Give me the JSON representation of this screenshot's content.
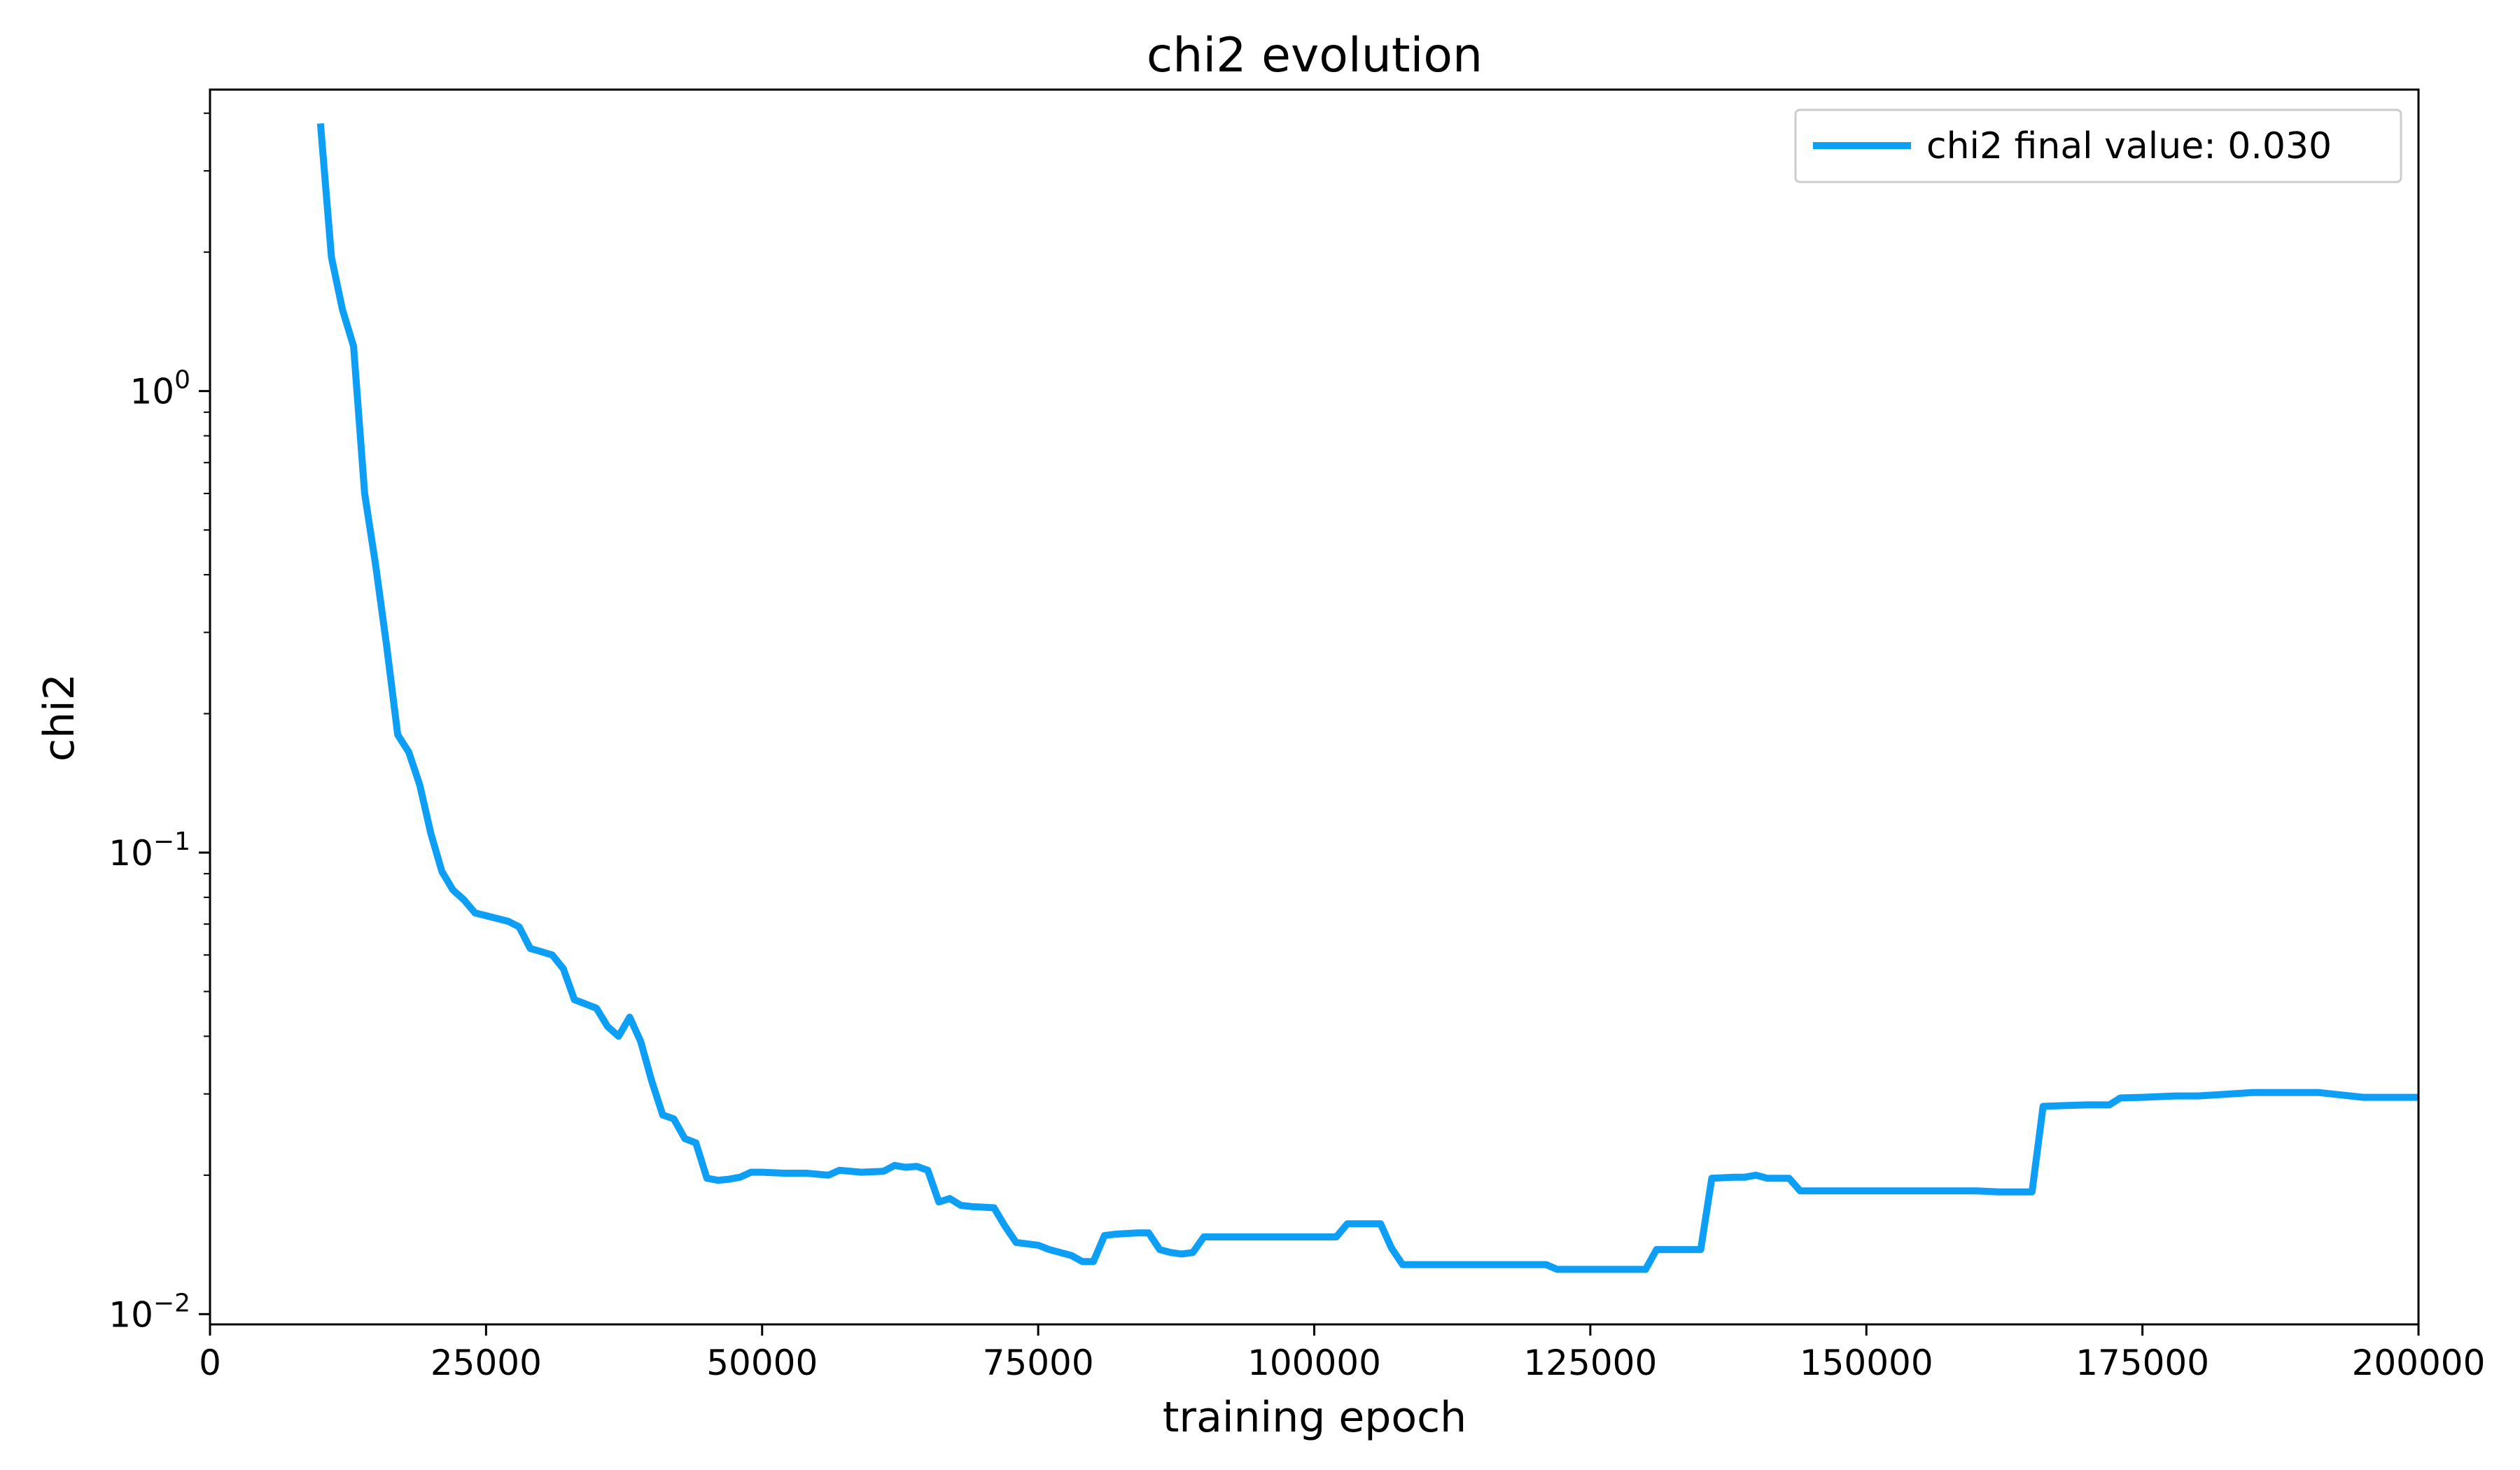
{
  "chart_data": {
    "type": "line",
    "title": "chi2 evolution",
    "xlabel": "training epoch",
    "ylabel": "chi2",
    "xlim": [
      0,
      200000
    ],
    "ylim": [
      0.0095,
      4.5
    ],
    "yscale": "log",
    "x_ticks": [
      0,
      25000,
      50000,
      75000,
      100000,
      125000,
      150000,
      175000,
      200000
    ],
    "x_tick_labels": [
      "0",
      "25000",
      "50000",
      "75000",
      "100000",
      "125000",
      "150000",
      "175000",
      "200000"
    ],
    "y_ticks": [
      1,
      0.1,
      0.01
    ],
    "y_tick_labels": [
      {
        "base": "10",
        "exp": "0"
      },
      {
        "base": "10",
        "exp": "−1"
      },
      {
        "base": "10",
        "exp": "−2"
      }
    ],
    "legend_position": "top-right",
    "grid": false,
    "series": [
      {
        "name": "chi2 final value: 0.030",
        "color": "#0d9ff5",
        "x": [
          10000,
          11000,
          12000,
          13000,
          14000,
          15000,
          16000,
          17000,
          18000,
          19000,
          20000,
          21000,
          22000,
          23000,
          24000,
          25000,
          26000,
          27000,
          28000,
          29000,
          30000,
          31000,
          32000,
          33000,
          34000,
          35000,
          36000,
          37000,
          38000,
          39000,
          40000,
          41000,
          42000,
          43000,
          44000,
          45000,
          46000,
          47000,
          48000,
          49000,
          50000,
          52000,
          54000,
          56000,
          57000,
          59000,
          61000,
          62000,
          63000,
          64000,
          65000,
          66000,
          67000,
          68000,
          69000,
          71000,
          72000,
          73000,
          74000,
          75000,
          76000,
          77000,
          78000,
          79000,
          80000,
          81000,
          82000,
          84000,
          85000,
          86000,
          87000,
          88000,
          89000,
          90000,
          95000,
          100000,
          102000,
          103000,
          104000,
          106000,
          107000,
          108000,
          110000,
          115000,
          120000,
          121000,
          122000,
          125000,
          130000,
          131000,
          132000,
          135000,
          136000,
          138000,
          139000,
          140000,
          141000,
          143000,
          144000,
          150000,
          155000,
          160000,
          162000,
          165000,
          166000,
          168000,
          170000,
          172000,
          173000,
          175000,
          178000,
          180000,
          182000,
          185000,
          190000,
          191000,
          195000,
          200000
        ],
        "values": [
          3.8,
          1.95,
          1.5,
          1.25,
          0.6,
          0.42,
          0.28,
          0.18,
          0.165,
          0.14,
          0.11,
          0.091,
          0.083,
          0.079,
          0.074,
          0.073,
          0.072,
          0.071,
          0.069,
          0.062,
          0.061,
          0.06,
          0.056,
          0.048,
          0.047,
          0.046,
          0.042,
          0.04,
          0.044,
          0.039,
          0.032,
          0.027,
          0.0265,
          0.024,
          0.0235,
          0.0197,
          0.0195,
          0.0196,
          0.0198,
          0.0203,
          0.0203,
          0.0202,
          0.0202,
          0.02,
          0.0205,
          0.0203,
          0.0204,
          0.021,
          0.0208,
          0.0209,
          0.0205,
          0.0175,
          0.0178,
          0.0172,
          0.0171,
          0.017,
          0.0155,
          0.0143,
          0.0142,
          0.0141,
          0.0138,
          0.0136,
          0.0134,
          0.013,
          0.013,
          0.0148,
          0.0149,
          0.015,
          0.015,
          0.0138,
          0.0136,
          0.0135,
          0.0136,
          0.0147,
          0.0147,
          0.0147,
          0.0147,
          0.0157,
          0.0157,
          0.0157,
          0.0139,
          0.0128,
          0.0128,
          0.0128,
          0.0128,
          0.0128,
          0.0125,
          0.0125,
          0.0125,
          0.0138,
          0.0138,
          0.0138,
          0.0197,
          0.0198,
          0.0198,
          0.02,
          0.0197,
          0.0197,
          0.0185,
          0.0185,
          0.0185,
          0.0185,
          0.0184,
          0.0184,
          0.0282,
          0.0283,
          0.0284,
          0.0284,
          0.0294,
          0.0295,
          0.0297,
          0.0297,
          0.0299,
          0.0302,
          0.0302,
          0.0302,
          0.0295,
          0.0295
        ]
      }
    ]
  }
}
